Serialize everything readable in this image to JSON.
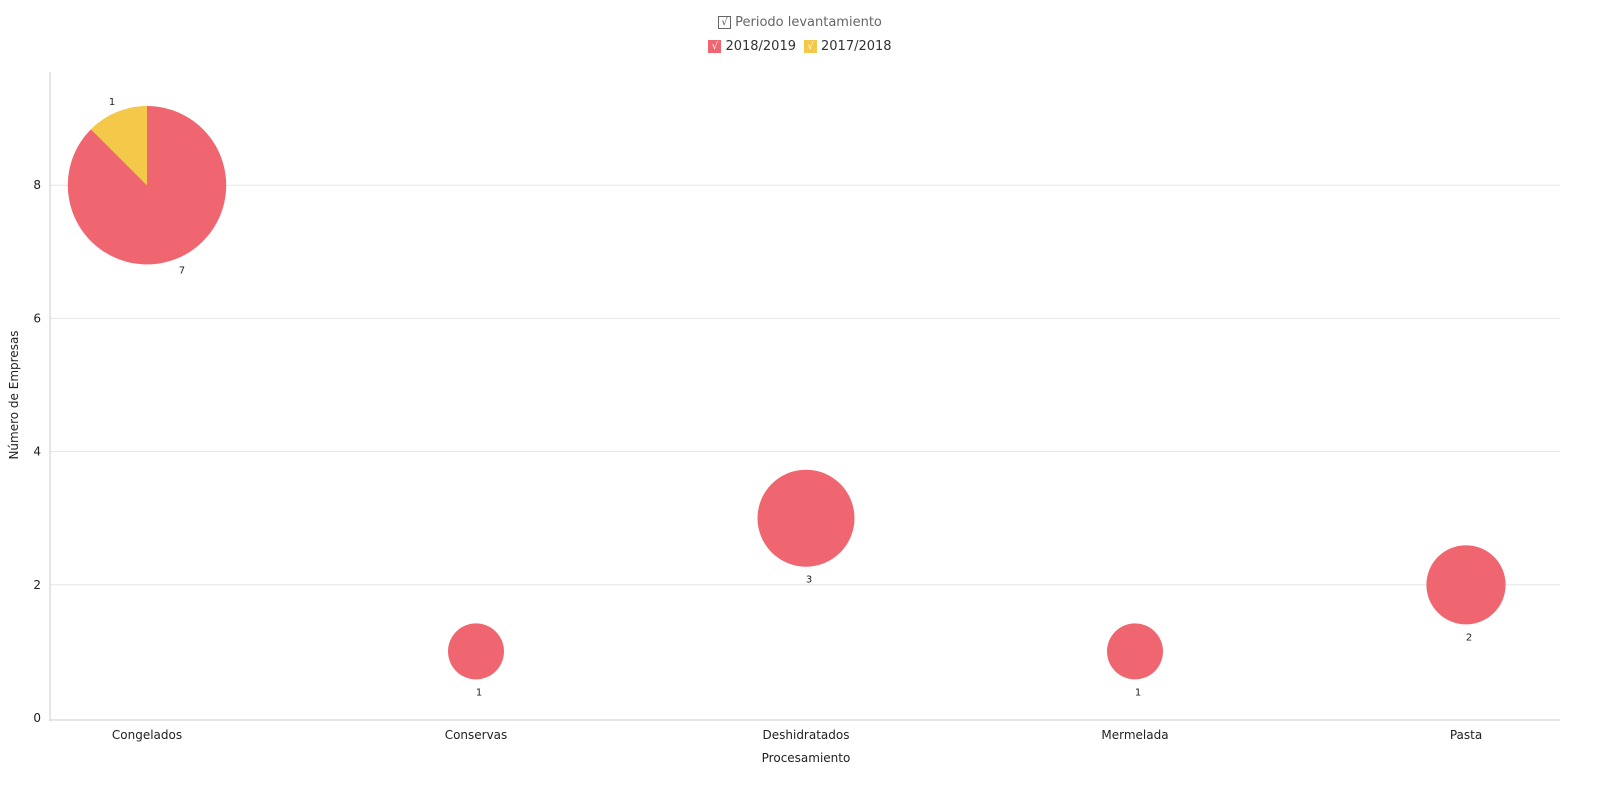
{
  "legend": {
    "title": "Periodo levantamiento",
    "title_check": "√",
    "items": [
      {
        "label": "2018/2019",
        "color": "#EF6670",
        "check": "√"
      },
      {
        "label": "2017/2018",
        "color": "#F4C849",
        "check": "√"
      }
    ]
  },
  "chart_data": {
    "type": "scatter",
    "subtype": "bubble-pie",
    "xlabel": "Procesamiento",
    "ylabel": "Número de Empresas",
    "categories": [
      "Congelados",
      "Conservas",
      "Deshidratados",
      "Mermelada",
      "Pasta"
    ],
    "ylim": [
      0,
      9.7
    ],
    "yticks": [
      0,
      2,
      4,
      6,
      8
    ],
    "grid": true,
    "legend_position": "top-center",
    "series": [
      {
        "name": "2018/2019",
        "color": "#EF6670",
        "values": [
          7,
          1,
          3,
          1,
          2
        ]
      },
      {
        "name": "2017/2018",
        "color": "#F4C849",
        "values": [
          1,
          0,
          0,
          0,
          0
        ]
      }
    ],
    "totals": [
      8,
      1,
      3,
      1,
      2
    ]
  }
}
